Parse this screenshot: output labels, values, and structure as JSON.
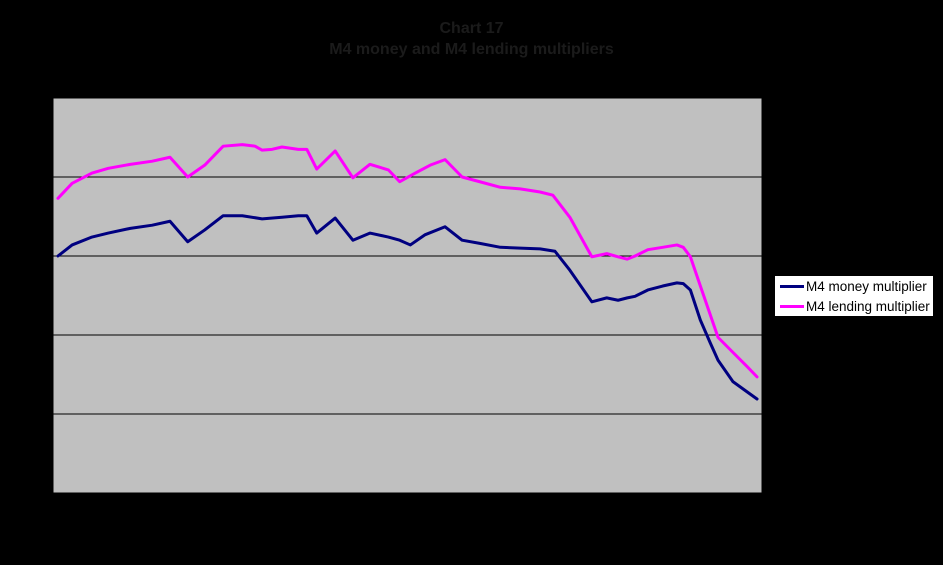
{
  "chart": {
    "title": "Chart 17",
    "subtitle": "M4 money and M4 lending multipliers",
    "title_color": "#1b1b1b",
    "background_color": "#000000"
  },
  "plot": {
    "background_color": "#c0c0c0",
    "border_color": "#000000",
    "gridline_color": "#000000"
  },
  "legend": {
    "background_color": "#ffffff",
    "border_color": "#000000"
  },
  "chart_data": {
    "type": "line",
    "title": "Chart 17",
    "subtitle": "M4 money and M4 lending multipliers",
    "xlabel": "",
    "ylabel": "",
    "x_axis_labels_visible": false,
    "y_axis_labels_visible": false,
    "ylim": [
      0,
      5
    ],
    "gridlines_at": [
      1,
      2,
      3,
      4
    ],
    "grid": "horizontal",
    "legend_position": "right",
    "series": [
      {
        "name": "M4 money multiplier",
        "color": "#000080",
        "points": [
          [
            0.007,
            3.0
          ],
          [
            0.027,
            3.14
          ],
          [
            0.055,
            3.24
          ],
          [
            0.078,
            3.29
          ],
          [
            0.109,
            3.35
          ],
          [
            0.14,
            3.39
          ],
          [
            0.165,
            3.44
          ],
          [
            0.19,
            3.18
          ],
          [
            0.214,
            3.33
          ],
          [
            0.24,
            3.51
          ],
          [
            0.267,
            3.51
          ],
          [
            0.295,
            3.47
          ],
          [
            0.323,
            3.49
          ],
          [
            0.346,
            3.51
          ],
          [
            0.358,
            3.51
          ],
          [
            0.372,
            3.29
          ],
          [
            0.398,
            3.48
          ],
          [
            0.423,
            3.2
          ],
          [
            0.447,
            3.29
          ],
          [
            0.473,
            3.24
          ],
          [
            0.489,
            3.2
          ],
          [
            0.504,
            3.14
          ],
          [
            0.525,
            3.27
          ],
          [
            0.553,
            3.37
          ],
          [
            0.577,
            3.2
          ],
          [
            0.602,
            3.16
          ],
          [
            0.631,
            3.11
          ],
          [
            0.659,
            3.1
          ],
          [
            0.687,
            3.09
          ],
          [
            0.708,
            3.06
          ],
          [
            0.729,
            2.82
          ],
          [
            0.76,
            2.42
          ],
          [
            0.781,
            2.47
          ],
          [
            0.797,
            2.44
          ],
          [
            0.81,
            2.47
          ],
          [
            0.821,
            2.49
          ],
          [
            0.839,
            2.57
          ],
          [
            0.86,
            2.62
          ],
          [
            0.88,
            2.66
          ],
          [
            0.889,
            2.65
          ],
          [
            0.899,
            2.57
          ],
          [
            0.913,
            2.19
          ],
          [
            0.927,
            1.9
          ],
          [
            0.938,
            1.68
          ],
          [
            0.959,
            1.41
          ],
          [
            0.979,
            1.28
          ],
          [
            0.993,
            1.19
          ]
        ]
      },
      {
        "name": "M4 lending multiplier",
        "color": "#ff00ff",
        "points": [
          [
            0.007,
            3.73
          ],
          [
            0.027,
            3.92
          ],
          [
            0.055,
            4.05
          ],
          [
            0.078,
            4.11
          ],
          [
            0.109,
            4.16
          ],
          [
            0.14,
            4.2
          ],
          [
            0.165,
            4.25
          ],
          [
            0.19,
            4.0
          ],
          [
            0.214,
            4.15
          ],
          [
            0.24,
            4.39
          ],
          [
            0.267,
            4.41
          ],
          [
            0.285,
            4.39
          ],
          [
            0.295,
            4.34
          ],
          [
            0.309,
            4.35
          ],
          [
            0.323,
            4.38
          ],
          [
            0.346,
            4.35
          ],
          [
            0.358,
            4.35
          ],
          [
            0.372,
            4.1
          ],
          [
            0.398,
            4.33
          ],
          [
            0.423,
            3.99
          ],
          [
            0.447,
            4.16
          ],
          [
            0.473,
            4.09
          ],
          [
            0.489,
            3.94
          ],
          [
            0.511,
            4.05
          ],
          [
            0.532,
            4.15
          ],
          [
            0.553,
            4.22
          ],
          [
            0.577,
            4.0
          ],
          [
            0.602,
            3.94
          ],
          [
            0.631,
            3.87
          ],
          [
            0.659,
            3.85
          ],
          [
            0.687,
            3.81
          ],
          [
            0.705,
            3.77
          ],
          [
            0.729,
            3.49
          ],
          [
            0.76,
            2.99
          ],
          [
            0.781,
            3.03
          ],
          [
            0.797,
            2.99
          ],
          [
            0.81,
            2.96
          ],
          [
            0.821,
            3.0
          ],
          [
            0.839,
            3.08
          ],
          [
            0.86,
            3.11
          ],
          [
            0.88,
            3.14
          ],
          [
            0.889,
            3.11
          ],
          [
            0.899,
            2.99
          ],
          [
            0.915,
            2.57
          ],
          [
            0.938,
            1.97
          ],
          [
            0.959,
            1.78
          ],
          [
            0.979,
            1.6
          ],
          [
            0.993,
            1.47
          ]
        ]
      }
    ]
  }
}
